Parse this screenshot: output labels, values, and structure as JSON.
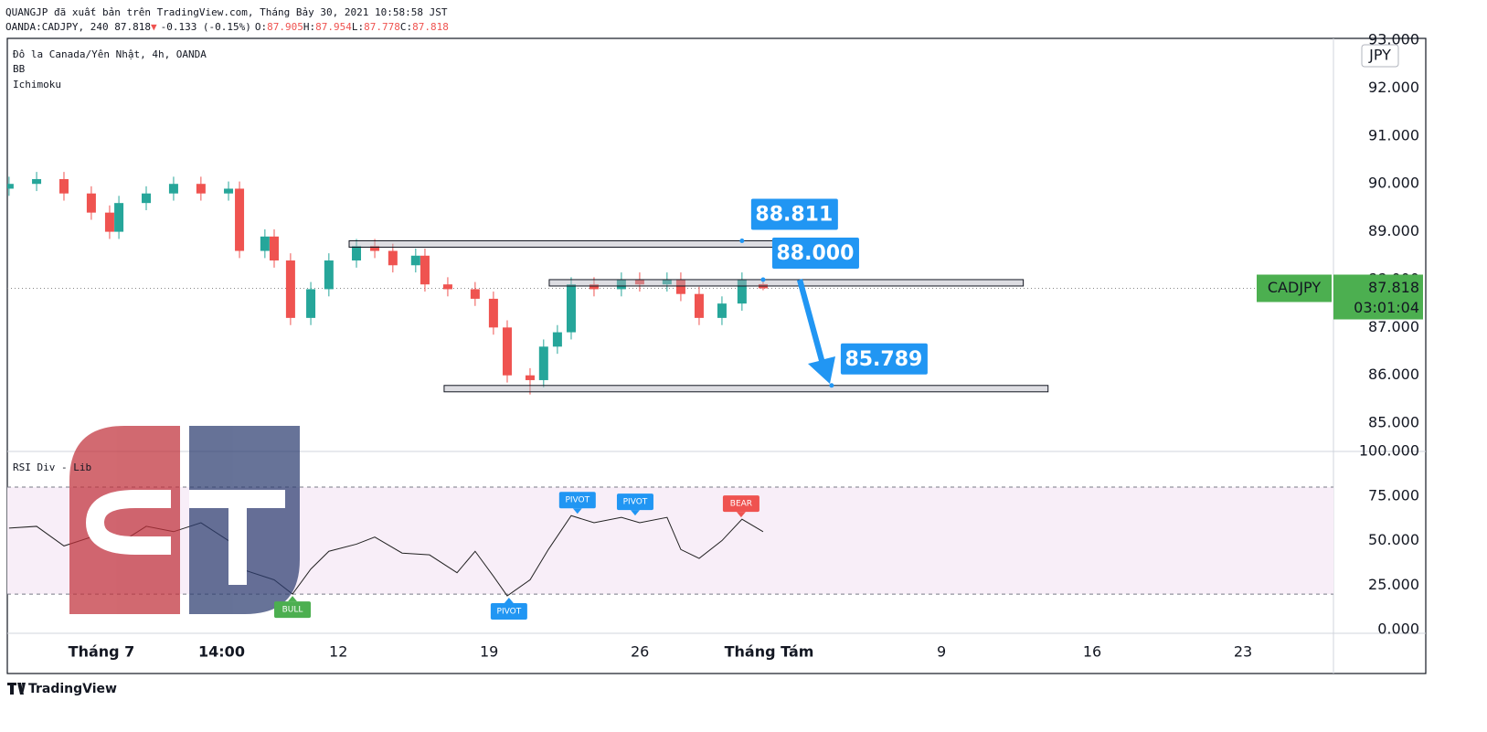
{
  "header": {
    "line1": "QUANGJP đã xuất bản trên TradingView.com, Tháng Bảy 30, 2021 10:58:58 JST",
    "symbol": "OANDA:CADJPY, 240 87.818",
    "change": "-0.133 (-0.15%)",
    "ohlc": [
      [
        "O:",
        "87.905"
      ],
      [
        "H:",
        "87.954"
      ],
      [
        "L:",
        "87.778"
      ],
      [
        "C:",
        "87.818"
      ]
    ]
  },
  "legend": [
    "Đô la Canada/Yên Nhật, 4h, OANDA",
    "BB",
    "Ichimoku"
  ],
  "currency": "JPY",
  "footer": "TradingView",
  "chart_data": [
    {
      "type": "candlestick",
      "up_color": "#26a69a",
      "down_color": "#ef5350",
      "xlim": [
        -3.37,
        58.2
      ],
      "ylim": [
        84.41,
        93.04
      ],
      "xticks": [
        {
          "value": 1,
          "label": "Tháng 7"
        },
        {
          "value": 6.58,
          "label": "14:00"
        },
        12,
        19,
        26,
        {
          "value": 32,
          "label": "Tháng Tám"
        },
        {
          "value": 40,
          "label": "9"
        },
        {
          "value": 47,
          "label": "16"
        },
        {
          "value": 54,
          "label": "23"
        }
      ],
      "yticks": [
        {
          "value": 85,
          "label": "85.000"
        },
        {
          "value": 86,
          "label": "86.000"
        },
        {
          "value": 87,
          "label": "87.000"
        },
        {
          "value": 88,
          "label": "88.000"
        },
        {
          "value": 89,
          "label": "89.000"
        },
        {
          "value": 90,
          "label": "90.000"
        },
        {
          "value": 91,
          "label": "91.000"
        },
        {
          "value": 92,
          "label": "92.000"
        },
        {
          "value": 93,
          "label": "93.000"
        }
      ],
      "candles": [
        {
          "x": -3.29,
          "open": 89.9,
          "high": 90.15,
          "low": 89.75,
          "close": 90.0
        },
        {
          "x": -2.01,
          "open": 90.0,
          "high": 90.25,
          "low": 89.85,
          "close": 90.1
        },
        {
          "x": -0.74,
          "open": 90.1,
          "high": 90.25,
          "low": 89.65,
          "close": 89.8
        },
        {
          "x": 0.53,
          "open": 89.8,
          "high": 89.95,
          "low": 89.25,
          "close": 89.4
        },
        {
          "x": 1.38,
          "open": 89.4,
          "high": 89.55,
          "low": 88.85,
          "close": 89.0
        },
        {
          "x": 1.81,
          "open": 89.0,
          "high": 89.75,
          "low": 88.85,
          "close": 89.6
        },
        {
          "x": 3.08,
          "open": 89.6,
          "high": 89.95,
          "low": 89.45,
          "close": 89.8
        },
        {
          "x": 4.35,
          "open": 89.8,
          "high": 90.15,
          "low": 89.65,
          "close": 90.0
        },
        {
          "x": 5.62,
          "open": 90.0,
          "high": 90.15,
          "low": 89.65,
          "close": 89.8
        },
        {
          "x": 6.9,
          "open": 89.8,
          "high": 90.05,
          "low": 89.65,
          "close": 89.9
        },
        {
          "x": 7.41,
          "open": 89.9,
          "high": 90.05,
          "low": 88.45,
          "close": 88.6
        },
        {
          "x": 8.59,
          "open": 88.6,
          "high": 89.05,
          "low": 88.45,
          "close": 88.9
        },
        {
          "x": 9.02,
          "open": 88.9,
          "high": 89.05,
          "low": 88.25,
          "close": 88.4
        },
        {
          "x": 9.78,
          "open": 88.4,
          "high": 88.55,
          "low": 87.05,
          "close": 87.2
        },
        {
          "x": 10.72,
          "open": 87.2,
          "high": 87.95,
          "low": 87.05,
          "close": 87.8
        },
        {
          "x": 11.56,
          "open": 87.8,
          "high": 88.55,
          "low": 87.65,
          "close": 88.4
        },
        {
          "x": 12.84,
          "open": 88.4,
          "high": 88.85,
          "low": 88.25,
          "close": 88.7
        },
        {
          "x": 13.69,
          "open": 88.7,
          "high": 88.85,
          "low": 88.45,
          "close": 88.6
        },
        {
          "x": 14.53,
          "open": 88.6,
          "high": 88.75,
          "low": 88.15,
          "close": 88.3
        },
        {
          "x": 15.59,
          "open": 88.3,
          "high": 88.65,
          "low": 88.15,
          "close": 88.5
        },
        {
          "x": 16.02,
          "open": 88.5,
          "high": 88.65,
          "low": 87.75,
          "close": 87.9
        },
        {
          "x": 17.08,
          "open": 87.9,
          "high": 88.05,
          "low": 87.65,
          "close": 87.8
        },
        {
          "x": 18.35,
          "open": 87.8,
          "high": 87.95,
          "low": 87.45,
          "close": 87.6
        },
        {
          "x": 19.2,
          "open": 87.6,
          "high": 87.75,
          "low": 86.85,
          "close": 87.0
        },
        {
          "x": 19.84,
          "open": 87.0,
          "high": 87.15,
          "low": 85.85,
          "close": 86.0
        },
        {
          "x": 20.9,
          "open": 86.0,
          "high": 86.15,
          "low": 85.6,
          "close": 85.9
        },
        {
          "x": 21.53,
          "open": 85.9,
          "high": 86.75,
          "low": 85.75,
          "close": 86.6
        },
        {
          "x": 22.17,
          "open": 86.6,
          "high": 87.05,
          "low": 86.45,
          "close": 86.9
        },
        {
          "x": 22.81,
          "open": 86.9,
          "high": 88.05,
          "low": 86.75,
          "close": 87.9
        },
        {
          "x": 23.87,
          "open": 87.9,
          "high": 88.05,
          "low": 87.65,
          "close": 87.8
        },
        {
          "x": 25.14,
          "open": 87.8,
          "high": 88.15,
          "low": 87.65,
          "close": 88.0
        },
        {
          "x": 25.99,
          "open": 88.0,
          "high": 88.15,
          "low": 87.75,
          "close": 87.9
        },
        {
          "x": 27.26,
          "open": 87.9,
          "high": 88.15,
          "low": 87.75,
          "close": 88.0
        },
        {
          "x": 27.9,
          "open": 88.0,
          "high": 88.15,
          "low": 87.55,
          "close": 87.7
        },
        {
          "x": 28.75,
          "open": 87.7,
          "high": 87.85,
          "low": 87.05,
          "close": 87.2
        },
        {
          "x": 29.81,
          "open": 87.2,
          "high": 87.65,
          "low": 87.05,
          "close": 87.5
        },
        {
          "x": 30.74,
          "open": 87.5,
          "high": 88.15,
          "low": 87.35,
          "close": 88.0
        },
        {
          "x": 31.72,
          "open": 87.905,
          "high": 87.954,
          "low": 87.778,
          "close": 87.818
        }
      ],
      "zones": [
        {
          "value": 88.811,
          "label": "88.811",
          "x_range": [
            12.5,
            34.9
          ],
          "anchor_x": 30.74
        },
        {
          "value": 88.0,
          "label": "88.000",
          "x_range": [
            21.79,
            43.8
          ],
          "anchor_x": 31.72
        },
        {
          "value": 85.789,
          "label": "85.789",
          "x_range": [
            16.91,
            44.95
          ],
          "anchor_x": 34.9
        }
      ],
      "last": {
        "value": 87.818,
        "label": "87.818"
      },
      "symbol_tag": "CADJPY",
      "countdown": "03:01:04"
    },
    {
      "type": "line",
      "title": "RSI Div - Lib",
      "color": "#222222",
      "band_color": "#f8eef8",
      "xlim": [
        -3.37,
        58.2
      ],
      "ylim": [
        -2,
        100
      ],
      "yticks": [
        {
          "value": 0,
          "label": "0.000"
        },
        {
          "value": 25,
          "label": "25.000"
        },
        {
          "value": 50,
          "label": "50.000"
        },
        {
          "value": 75,
          "label": "75.000"
        },
        {
          "value": 100,
          "label": "100.000"
        }
      ],
      "levels": [
        80,
        20
      ],
      "x": [
        -3.29,
        -2.01,
        -0.74,
        0.53,
        1.38,
        3.08,
        4.35,
        5.62,
        6.9,
        7.75,
        9.02,
        9.87,
        10.72,
        11.56,
        12.84,
        13.69,
        14.96,
        16.23,
        17.51,
        18.35,
        19.2,
        19.84,
        20.9,
        21.75,
        22.81,
        23.87,
        25.14,
        25.99,
        27.26,
        27.9,
        28.75,
        29.81,
        30.74,
        31.72
      ],
      "values": [
        57,
        58,
        47,
        52,
        45,
        58,
        55,
        60,
        50,
        33,
        28,
        20,
        34,
        44,
        48,
        52,
        43,
        42,
        32,
        44,
        30,
        19,
        28,
        45,
        64,
        60,
        63,
        60,
        63,
        45,
        40,
        50,
        62,
        55
      ],
      "labels": [
        {
          "text": "BULL",
          "x": 9.87,
          "value": 20,
          "color": "#4caf50",
          "position": "below"
        },
        {
          "text": "PIVOT",
          "x": 19.92,
          "value": 19,
          "color": "#2196f3",
          "position": "below"
        },
        {
          "text": "PIVOT",
          "x": 23.1,
          "value": 64,
          "color": "#2196f3",
          "position": "above"
        },
        {
          "text": "PIVOT",
          "x": 25.78,
          "value": 63,
          "color": "#2196f3",
          "position": "above"
        },
        {
          "text": "BEAR",
          "x": 30.7,
          "value": 62,
          "color": "#ef5350",
          "position": "above"
        }
      ]
    }
  ]
}
